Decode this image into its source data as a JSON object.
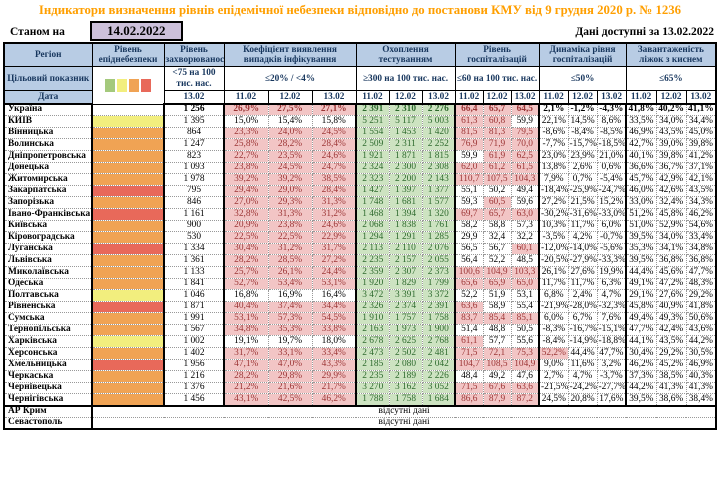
{
  "header": {
    "title": "Індикатори визначення рівнів епідемічної небезпеки відповідно до постанови КМУ від 9 грудня 2020 р. № 1236",
    "as_of_label": "Станом на",
    "as_of_date": "14.02.2022",
    "available_label": "Дані доступні за 13.02.2022"
  },
  "colors": {
    "title": "#ff9f00",
    "header_bg": "#b8cce4",
    "header_text": "#17365d",
    "date_box_bg": "#ccc0da",
    "pink_bg": "#f2c5c5",
    "pink_text": "#9c3636",
    "green_bg": "#cde3c1",
    "green_text": "#2f6b2f",
    "level_yellow": "#f2ee7e",
    "level_orange": "#f0a354",
    "level_red": "#e8695a"
  },
  "legend_colors": [
    "#a4c97c",
    "#f2ee7e",
    "#f0a354",
    "#e8695a"
  ],
  "table": {
    "region_header": "Регіон",
    "level_header": "Рівень епіднебезпеки",
    "target_row_label": "Цільовий показник",
    "date_row_label": "Дата",
    "groups": [
      {
        "label": "Рівень захворюваності",
        "target": "<75 на 100 тис. нас.",
        "dates": [
          "13.02"
        ]
      },
      {
        "label": "Коефіцієнт виявлення випадків інфікування",
        "target": "≤20% / <4%",
        "dates": [
          "11.02",
          "12.02",
          "13.02"
        ]
      },
      {
        "label": "Охоплення тестуванням",
        "target": "≥300 на 100 тис. нас.",
        "dates": [
          "11.02",
          "12.02",
          "13.02"
        ]
      },
      {
        "label": "Рівень госпіталізацій",
        "target": "≤60 на 100 тис. нас.",
        "dates": [
          "11.02",
          "12.02",
          "13.02"
        ]
      },
      {
        "label": "Динаміка рівня госпіталізацій",
        "target": "≤50%",
        "dates": [
          "11.02",
          "12.02",
          "13.02"
        ]
      },
      {
        "label": "Завантаженість ліжок з киснем",
        "target": "≤65%",
        "dates": [
          "11.02",
          "12.02",
          "13.02"
        ]
      }
    ],
    "thresholds": {
      "detection_pct": 20,
      "hospitalization": 60,
      "dynamics_pct": 50,
      "beds_pct": 65
    },
    "no_data_text": "відсутні дані",
    "no_data_rows": [
      "АР Крим",
      "Севастополь"
    ],
    "rows": [
      {
        "region": "Україна",
        "bold": true,
        "level": "",
        "morbidity": "1 256",
        "detection": [
          "26,9%",
          "27,5%",
          "27,1%"
        ],
        "testing": [
          "2 391",
          "2 310",
          "2 276"
        ],
        "hospitalization": [
          "66,4",
          "65,7",
          "64,5"
        ],
        "dynamics": [
          "2,1%",
          "-1,2%",
          "-4,3%"
        ],
        "beds": [
          "41,8%",
          "40,2%",
          "41,1%"
        ]
      },
      {
        "region": "КИЇВ",
        "level": "yellow",
        "morbidity": "1 395",
        "detection": [
          "15,0%",
          "15,4%",
          "15,8%"
        ],
        "testing": [
          "5 251",
          "5 117",
          "5 003"
        ],
        "hospitalization": [
          "61,3",
          "60,8",
          "59,9"
        ],
        "dynamics": [
          "22,1%",
          "14,5%",
          "8,6%"
        ],
        "beds": [
          "33,5%",
          "34,0%",
          "34,4%"
        ]
      },
      {
        "region": "Вінницька",
        "level": "orange",
        "morbidity": "864",
        "detection": [
          "23,3%",
          "24,0%",
          "24,5%"
        ],
        "testing": [
          "1 554",
          "1 453",
          "1 420"
        ],
        "hospitalization": [
          "81,5",
          "81,3",
          "79,5"
        ],
        "dynamics": [
          "-8,6%",
          "-8,4%",
          "-8,5%"
        ],
        "beds": [
          "46,9%",
          "43,5%",
          "45,0%"
        ]
      },
      {
        "region": "Волинська",
        "level": "orange",
        "morbidity": "1 247",
        "detection": [
          "25,8%",
          "28,2%",
          "28,4%"
        ],
        "testing": [
          "2 509",
          "2 311",
          "2 252"
        ],
        "hospitalization": [
          "76,9",
          "71,9",
          "70,0"
        ],
        "dynamics": [
          "-7,7%",
          "-15,7%",
          "-18,5%"
        ],
        "beds": [
          "42,7%",
          "39,0%",
          "39,8%"
        ]
      },
      {
        "region": "Дніпропетровська",
        "level": "orange",
        "morbidity": "823",
        "detection": [
          "22,7%",
          "23,5%",
          "24,6%"
        ],
        "testing": [
          "1 921",
          "1 871",
          "1 815"
        ],
        "hospitalization": [
          "59,9",
          "61,9",
          "62,5"
        ],
        "dynamics": [
          "23,0%",
          "23,9%",
          "21,0%"
        ],
        "beds": [
          "40,1%",
          "39,8%",
          "41,2%"
        ]
      },
      {
        "region": "Донецька",
        "level": "orange",
        "morbidity": "1 093",
        "detection": [
          "23,8%",
          "24,5%",
          "24,7%"
        ],
        "testing": [
          "2 324",
          "2 300",
          "2 308"
        ],
        "hospitalization": [
          "62,0",
          "61,2",
          "61,5"
        ],
        "dynamics": [
          "13,8%",
          "2,6%",
          "0,6%"
        ],
        "beds": [
          "36,6%",
          "36,7%",
          "37,1%"
        ]
      },
      {
        "region": "Житомирська",
        "level": "orange",
        "morbidity": "1 978",
        "detection": [
          "39,2%",
          "39,2%",
          "38,5%"
        ],
        "testing": [
          "2 323",
          "2 200",
          "2 143"
        ],
        "hospitalization": [
          "110,7",
          "107,5",
          "104,3"
        ],
        "dynamics": [
          "7,9%",
          "0,7%",
          "-5,4%"
        ],
        "beds": [
          "45,7%",
          "42,9%",
          "42,1%"
        ]
      },
      {
        "region": "Закарпатська",
        "level": "red",
        "morbidity": "795",
        "detection": [
          "29,4%",
          "29,0%",
          "28,4%"
        ],
        "testing": [
          "1 427",
          "1 397",
          "1 377"
        ],
        "hospitalization": [
          "55,1",
          "50,2",
          "49,4"
        ],
        "dynamics": [
          "-18,4%",
          "-25,9%",
          "-24,7%"
        ],
        "beds": [
          "46,0%",
          "42,6%",
          "43,5%"
        ]
      },
      {
        "region": "Запорізька",
        "level": "orange",
        "morbidity": "846",
        "detection": [
          "27,0%",
          "29,3%",
          "31,3%"
        ],
        "testing": [
          "1 748",
          "1 681",
          "1 577"
        ],
        "hospitalization": [
          "59,3",
          "60,5",
          "59,6"
        ],
        "dynamics": [
          "27,2%",
          "21,5%",
          "15,2%"
        ],
        "beds": [
          "33,0%",
          "32,4%",
          "34,3%"
        ]
      },
      {
        "region": "Івано-Франківська",
        "level": "red",
        "morbidity": "1 161",
        "detection": [
          "32,8%",
          "31,3%",
          "31,2%"
        ],
        "testing": [
          "1 468",
          "1 394",
          "1 320"
        ],
        "hospitalization": [
          "69,7",
          "65,7",
          "63,0"
        ],
        "dynamics": [
          "-30,2%",
          "-31,6%",
          "-33,0%"
        ],
        "beds": [
          "51,2%",
          "45,8%",
          "46,2%"
        ]
      },
      {
        "region": "Київська",
        "level": "orange",
        "morbidity": "900",
        "detection": [
          "20,9%",
          "23,8%",
          "24,6%"
        ],
        "testing": [
          "2 068",
          "1 838",
          "1 761"
        ],
        "hospitalization": [
          "58,2",
          "58,8",
          "57,3"
        ],
        "dynamics": [
          "10,3%",
          "11,7%",
          "6,0%"
        ],
        "beds": [
          "51,0%",
          "52,9%",
          "54,6%"
        ]
      },
      {
        "region": "Кіровоградська",
        "level": "orange",
        "morbidity": "530",
        "detection": [
          "22,5%",
          "22,5%",
          "22,9%"
        ],
        "testing": [
          "1 294",
          "1 291",
          "1 285"
        ],
        "hospitalization": [
          "29,9",
          "32,4",
          "32,2"
        ],
        "dynamics": [
          "-3,5%",
          "4,2%",
          "-0,7%"
        ],
        "beds": [
          "39,5%",
          "34,0%",
          "33,4%"
        ]
      },
      {
        "region": "Луганська",
        "level": "red",
        "morbidity": "1 334",
        "detection": [
          "30,4%",
          "31,2%",
          "31,7%"
        ],
        "testing": [
          "2 113",
          "2 110",
          "2 076"
        ],
        "hospitalization": [
          "56,5",
          "56,7",
          "60,1"
        ],
        "dynamics": [
          "-12,0%",
          "-14,0%",
          "-5,6%"
        ],
        "beds": [
          "35,3%",
          "34,1%",
          "34,8%"
        ]
      },
      {
        "region": "Львівська",
        "level": "orange",
        "morbidity": "1 361",
        "detection": [
          "28,2%",
          "28,5%",
          "27,2%"
        ],
        "testing": [
          "2 235",
          "2 157",
          "2 055"
        ],
        "hospitalization": [
          "56,4",
          "52,2",
          "48,5"
        ],
        "dynamics": [
          "-20,5%",
          "-27,9%",
          "-33,3%"
        ],
        "beds": [
          "39,5%",
          "36,8%",
          "36,8%"
        ]
      },
      {
        "region": "Миколаївська",
        "level": "orange",
        "morbidity": "1 133",
        "detection": [
          "25,7%",
          "26,1%",
          "24,4%"
        ],
        "testing": [
          "2 359",
          "2 307",
          "2 373"
        ],
        "hospitalization": [
          "100,6",
          "104,9",
          "103,3"
        ],
        "dynamics": [
          "26,1%",
          "27,6%",
          "19,9%"
        ],
        "beds": [
          "44,4%",
          "45,6%",
          "47,7%"
        ]
      },
      {
        "region": "Одеська",
        "level": "orange",
        "morbidity": "1 841",
        "detection": [
          "52,7%",
          "53,4%",
          "53,1%"
        ],
        "testing": [
          "1 920",
          "1 829",
          "1 799"
        ],
        "hospitalization": [
          "65,6",
          "65,9",
          "65,0"
        ],
        "dynamics": [
          "11,7%",
          "11,7%",
          "6,3%"
        ],
        "beds": [
          "49,1%",
          "47,2%",
          "48,3%"
        ]
      },
      {
        "region": "Полтавська",
        "level": "yellow",
        "morbidity": "1 046",
        "detection": [
          "16,8%",
          "16,9%",
          "16,4%"
        ],
        "testing": [
          "3 472",
          "3 391",
          "3 372"
        ],
        "hospitalization": [
          "52,2",
          "51,9",
          "53,1"
        ],
        "dynamics": [
          "6,8%",
          "2,4%",
          "4,7%"
        ],
        "beds": [
          "29,1%",
          "27,6%",
          "29,2%"
        ]
      },
      {
        "region": "Рівненська",
        "level": "red",
        "morbidity": "1 871",
        "detection": [
          "40,4%",
          "37,4%",
          "34,4%"
        ],
        "testing": [
          "2 326",
          "2 374",
          "2 391"
        ],
        "hospitalization": [
          "63,6",
          "58,9",
          "55,4"
        ],
        "dynamics": [
          "-21,9%",
          "-28,0%",
          "-32,3%"
        ],
        "beds": [
          "45,8%",
          "40,9%",
          "41,8%"
        ]
      },
      {
        "region": "Сумська",
        "level": "orange",
        "morbidity": "1 991",
        "detection": [
          "53,1%",
          "57,3%",
          "54,5%"
        ],
        "testing": [
          "1 910",
          "1 757",
          "1 758"
        ],
        "hospitalization": [
          "83,7",
          "85,4",
          "85,1"
        ],
        "dynamics": [
          "6,0%",
          "6,7%",
          "7,6%"
        ],
        "beds": [
          "49,4%",
          "49,3%",
          "50,6%"
        ]
      },
      {
        "region": "Тернопільська",
        "level": "orange",
        "morbidity": "1 567",
        "detection": [
          "34,8%",
          "35,3%",
          "33,8%"
        ],
        "testing": [
          "2 163",
          "1 973",
          "1 900"
        ],
        "hospitalization": [
          "51,4",
          "48,8",
          "50,5"
        ],
        "dynamics": [
          "-8,3%",
          "-16,7%",
          "-15,1%"
        ],
        "beds": [
          "47,7%",
          "42,4%",
          "43,6%"
        ]
      },
      {
        "region": "Харківська",
        "level": "yellow",
        "morbidity": "1 002",
        "detection": [
          "19,1%",
          "19,7%",
          "18,0%"
        ],
        "testing": [
          "2 678",
          "2 625",
          "2 768"
        ],
        "hospitalization": [
          "61,1",
          "57,7",
          "55,6"
        ],
        "dynamics": [
          "-8,4%",
          "-14,9%",
          "-18,8%"
        ],
        "beds": [
          "44,1%",
          "43,5%",
          "44,2%"
        ]
      },
      {
        "region": "Херсонська",
        "level": "orange",
        "morbidity": "1 402",
        "detection": [
          "31,7%",
          "33,1%",
          "33,4%"
        ],
        "testing": [
          "2 473",
          "2 502",
          "2 481"
        ],
        "hospitalization": [
          "71,5",
          "72,1",
          "75,3"
        ],
        "dynamics": [
          "52,2%",
          "44,4%",
          "47,7%"
        ],
        "beds": [
          "30,4%",
          "29,2%",
          "30,5%"
        ]
      },
      {
        "region": "Хмельницька",
        "level": "red",
        "morbidity": "1 956",
        "detection": [
          "47,1%",
          "47,0%",
          "43,3%"
        ],
        "testing": [
          "2 185",
          "2 080",
          "2 042"
        ],
        "hospitalization": [
          "104,7",
          "108,5",
          "104,9"
        ],
        "dynamics": [
          "9,0%",
          "11,6%",
          "3,2%"
        ],
        "beds": [
          "46,2%",
          "45,2%",
          "46,9%"
        ]
      },
      {
        "region": "Черкаська",
        "level": "orange",
        "morbidity": "1 216",
        "detection": [
          "28,2%",
          "29,8%",
          "29,9%"
        ],
        "testing": [
          "2 235",
          "2 189",
          "2 226"
        ],
        "hospitalization": [
          "48,4",
          "49,2",
          "47,6"
        ],
        "dynamics": [
          "2,7%",
          "4,7%",
          "-3,7%"
        ],
        "beds": [
          "37,3%",
          "38,5%",
          "40,3%"
        ]
      },
      {
        "region": "Чернівецька",
        "level": "orange",
        "morbidity": "1 376",
        "detection": [
          "21,2%",
          "21,6%",
          "21,7%"
        ],
        "testing": [
          "3 270",
          "3 162",
          "3 052"
        ],
        "hospitalization": [
          "71,5",
          "67,6",
          "63,6"
        ],
        "dynamics": [
          "-21,5%",
          "-24,2%",
          "-27,7%"
        ],
        "beds": [
          "44,2%",
          "41,3%",
          "41,3%"
        ]
      },
      {
        "region": "Чернігівська",
        "level": "orange",
        "morbidity": "1 456",
        "detection": [
          "43,1%",
          "42,5%",
          "46,2%"
        ],
        "testing": [
          "1 788",
          "1 758",
          "1 684"
        ],
        "hospitalization": [
          "86,6",
          "87,9",
          "87,2"
        ],
        "dynamics": [
          "24,5%",
          "20,8%",
          "17,6%"
        ],
        "beds": [
          "39,5%",
          "38,6%",
          "38,4%"
        ]
      }
    ]
  }
}
